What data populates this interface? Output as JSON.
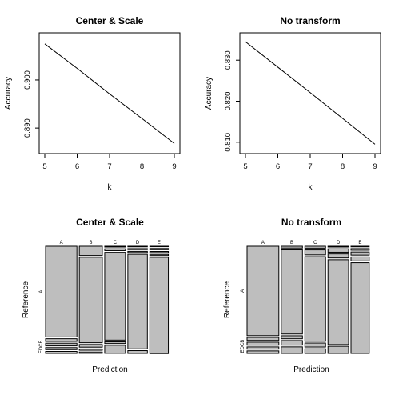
{
  "chart_data": [
    {
      "type": "line",
      "title": "Center & Scale",
      "xlabel": "k",
      "ylabel": "Accuracy",
      "x": [
        5,
        6,
        7,
        8,
        9
      ],
      "xticks": [
        "5",
        "6",
        "7",
        "8",
        "9"
      ],
      "yticks": [
        "0.890",
        "0.900"
      ],
      "xlim": [
        5,
        9
      ],
      "ylim": [
        0.8857,
        0.9088
      ],
      "series": [
        {
          "values": [
            0.9075,
            0.9024,
            0.8971,
            0.892,
            0.8868
          ]
        }
      ],
      "grid": false
    },
    {
      "type": "line",
      "title": "No transform",
      "xlabel": "k",
      "ylabel": "Accuracy",
      "x": [
        5,
        6,
        7,
        8,
        9
      ],
      "xticks": [
        "5",
        "6",
        "7",
        "8",
        "9"
      ],
      "yticks": [
        "0.810",
        "0.820",
        "0.830"
      ],
      "xlim": [
        5,
        9
      ],
      "ylim": [
        0.8084,
        0.8355
      ],
      "series": [
        {
          "values": [
            0.8345,
            0.8283,
            0.8221,
            0.8158,
            0.8095
          ]
        }
      ],
      "grid": false
    },
    {
      "type": "mosaic",
      "title": "Center & Scale",
      "xlabel": "Prediction",
      "ylabel": "Reference",
      "prediction_labels": [
        "A",
        "B",
        "C",
        "D",
        "E"
      ],
      "reference_labels": [
        "A",
        "B",
        "C",
        "D",
        "E"
      ],
      "reference_axis_labels": [
        "A",
        "EDCB"
      ],
      "column_proportions": [
        0.263,
        0.193,
        0.174,
        0.164,
        0.156
      ],
      "cell_proportions": [
        [
          0.906,
          0.027,
          0.027,
          0.02,
          0.02
        ],
        [
          0.093,
          0.853,
          0.027,
          0.013,
          0.013
        ],
        [
          0.008,
          0.018,
          0.876,
          0.017,
          0.08
        ],
        [
          0.006,
          0.01,
          0.012,
          0.944,
          0.028
        ],
        [
          0.003,
          0.012,
          0.012,
          0.012,
          0.961
        ]
      ]
    },
    {
      "type": "mosaic",
      "title": "No transform",
      "xlabel": "Prediction",
      "ylabel": "Reference",
      "prediction_labels": [
        "A",
        "B",
        "C",
        "D",
        "E"
      ],
      "reference_labels": [
        "A",
        "B",
        "C",
        "D",
        "E"
      ],
      "reference_axis_labels": [
        "A",
        "EDCB"
      ],
      "column_proportions": [
        0.267,
        0.178,
        0.174,
        0.173,
        0.153
      ],
      "cell_proportions": [
        [
          0.893,
          0.03,
          0.03,
          0.022,
          0.025
        ],
        [
          0.018,
          0.841,
          0.03,
          0.046,
          0.065
        ],
        [
          0.019,
          0.05,
          0.845,
          0.04,
          0.046
        ],
        [
          0.008,
          0.034,
          0.04,
          0.847,
          0.071
        ],
        [
          0.006,
          0.016,
          0.032,
          0.04,
          0.906
        ]
      ]
    }
  ],
  "colors": {
    "fill": "#bebebe",
    "stroke": "#000000",
    "line": "#000000"
  }
}
